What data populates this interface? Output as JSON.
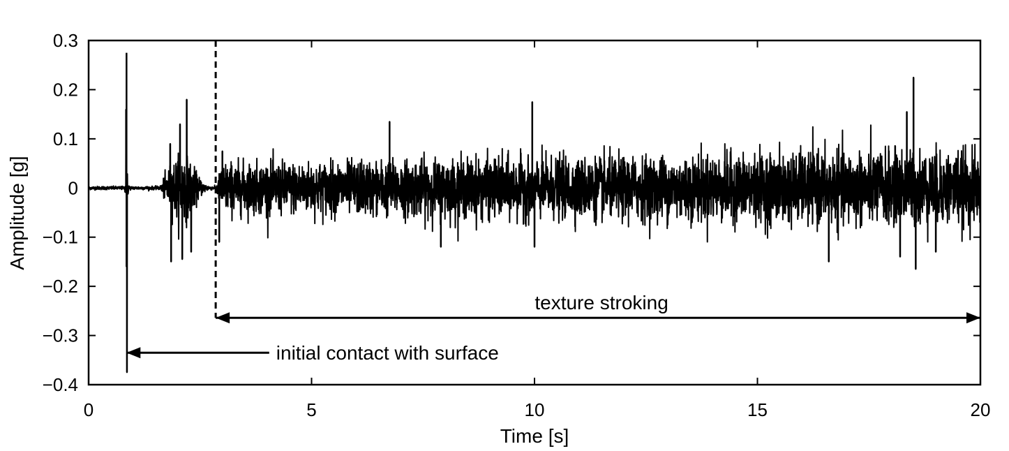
{
  "chart_data": {
    "type": "line",
    "title": "",
    "xlabel": "Time [s]",
    "ylabel": "Amplitude [g]",
    "xlim": [
      0,
      20
    ],
    "ylim": [
      -0.4,
      0.3
    ],
    "xticks": [
      0,
      5,
      10,
      15,
      20
    ],
    "xtick_labels": [
      "0",
      "5",
      "10",
      "15",
      "20"
    ],
    "yticks": [
      0.3,
      0.2,
      0.1,
      0,
      -0.1,
      -0.2,
      -0.3,
      -0.4
    ],
    "ytick_labels": [
      "0.3",
      "0.2",
      "0.1",
      "0",
      "−0.1",
      "−0.2",
      "−0.3",
      "−0.4"
    ],
    "grid": false,
    "legend": "none",
    "series": [
      {
        "color": "#000000",
        "envelope": {
          "x": [
            0.0,
            0.8,
            0.84,
            0.86,
            0.88,
            0.92,
            0.95,
            1.6,
            1.75,
            1.9,
            2.05,
            2.15,
            2.25,
            2.4,
            2.55,
            2.7,
            2.85,
            3.0,
            5.0,
            7.0,
            9.0,
            11.0,
            13.0,
            15.0,
            17.0,
            19.0,
            20.0
          ],
          "amp": [
            0.004,
            0.004,
            0.02,
            0.05,
            0.02,
            0.005,
            0.004,
            0.004,
            0.04,
            0.065,
            0.075,
            0.08,
            0.065,
            0.04,
            0.015,
            0.005,
            0.004,
            0.06,
            0.06,
            0.065,
            0.07,
            0.07,
            0.075,
            0.08,
            0.085,
            0.085,
            0.085
          ]
        },
        "peaks": [
          {
            "x": 0.85,
            "y": 0.275
          },
          {
            "x": 0.86,
            "y": -0.375
          },
          {
            "x": 0.84,
            "y": 0.16
          },
          {
            "x": 0.85,
            "y": -0.16
          },
          {
            "x": 1.83,
            "y": 0.09
          },
          {
            "x": 1.85,
            "y": -0.15
          },
          {
            "x": 2.05,
            "y": 0.13
          },
          {
            "x": 2.1,
            "y": -0.145
          },
          {
            "x": 2.2,
            "y": 0.18
          },
          {
            "x": 2.3,
            "y": -0.13
          },
          {
            "x": 2.93,
            "y": -0.11
          },
          {
            "x": 3.0,
            "y": 0.075
          },
          {
            "x": 6.75,
            "y": 0.135
          },
          {
            "x": 7.9,
            "y": -0.12
          },
          {
            "x": 9.95,
            "y": 0.175
          },
          {
            "x": 10.0,
            "y": -0.12
          },
          {
            "x": 16.6,
            "y": -0.15
          },
          {
            "x": 18.2,
            "y": -0.14
          },
          {
            "x": 18.5,
            "y": 0.225
          },
          {
            "x": 18.55,
            "y": -0.165
          },
          {
            "x": 18.35,
            "y": 0.155
          },
          {
            "x": 19.0,
            "y": -0.13
          }
        ]
      }
    ],
    "annotations": [
      {
        "text": "texture stroking",
        "arrow_from_x": 2.85,
        "arrow_to_x": 20.0,
        "arrow_y": -0.264,
        "style": "double-arrow"
      },
      {
        "text": "initial contact with surface",
        "arrow_from_x": 4.05,
        "arrow_to_x": 0.85,
        "arrow_y": -0.335,
        "style": "arrow"
      }
    ],
    "vlines": [
      {
        "x": 2.85,
        "y_from": 0.3,
        "y_to": -0.264,
        "style": "dashed"
      }
    ]
  }
}
